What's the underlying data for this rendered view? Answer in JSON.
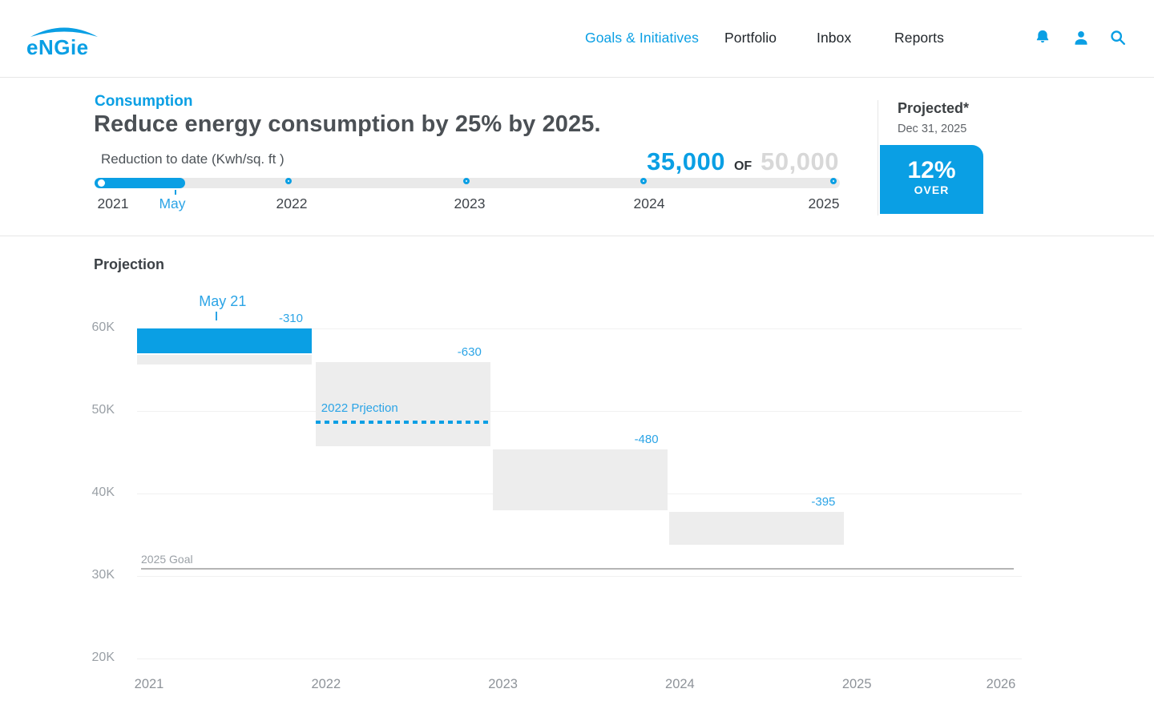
{
  "theme": {
    "accent_blue": "#0a9fe4",
    "light_blue_text": "#2ba4e6",
    "dark_text": "#4b5055",
    "muted_text": "#9aa0a6",
    "target_gray": "#d8d8d8"
  },
  "header": {
    "logo_text": "eNGie",
    "nav": [
      {
        "label": "Goals & Initiatives",
        "active": true
      },
      {
        "label": "Portfolio",
        "active": false
      },
      {
        "label": "Inbox",
        "active": false
      },
      {
        "label": "Reports",
        "active": false
      }
    ],
    "icons": [
      {
        "name": "notification-bell-icon"
      },
      {
        "name": "user-account-icon"
      },
      {
        "name": "search-icon"
      }
    ]
  },
  "goal": {
    "category": "Consumption",
    "title": "Reduce energy consumption by 25% by 2025.",
    "slider": {
      "label": "Reduction to date (Kwh/sq. ft )",
      "ticks": [
        "2021",
        "May",
        "2022",
        "2023",
        "2024",
        "2025"
      ],
      "current_position_label": "May"
    },
    "progress": {
      "current": "35,000",
      "of_label": "OF",
      "target": "50,000"
    },
    "projected": {
      "title": "Projected*",
      "date": "Dec 31, 2025",
      "value": "12%",
      "qualifier": "OVER"
    }
  },
  "chart_data": {
    "type": "waterfall",
    "title": "Projection",
    "unit": "Kwh/sq. ft (thousands)",
    "y_axis": {
      "ticks": [
        "60K",
        "50K",
        "40K",
        "30K",
        "20K"
      ],
      "tick_values_k": [
        60,
        50,
        40,
        30,
        20
      ],
      "min_k": 20,
      "max_k": 60,
      "grid": true
    },
    "x_axis": {
      "ticks": [
        "2021",
        "2022",
        "2023",
        "2024",
        "2025",
        "2026"
      ]
    },
    "steps": [
      {
        "period": "2021",
        "kind": "actual",
        "from_k": 60.0,
        "actual_to_k": 57.0,
        "residual_from_k": 56.8,
        "to_k": 55.65,
        "delta_label": "-310",
        "annotation": {
          "text": "May 21",
          "x_frac": 0.49
        }
      },
      {
        "period": "2022",
        "kind": "projected",
        "from_k": 55.9,
        "to_k": 45.7,
        "delta_label": "-630",
        "projection_line_k": 48.6,
        "projection_label": "2022 Prjection"
      },
      {
        "period": "2023",
        "kind": "projected",
        "from_k": 45.3,
        "to_k": 38.0,
        "delta_label": "-480"
      },
      {
        "period": "2024",
        "kind": "projected",
        "from_k": 37.8,
        "to_k": 33.8,
        "delta_label": "-395"
      }
    ],
    "goal_line": {
      "label": "2025 Goal",
      "value_k": 31.0
    },
    "colors": {
      "actual_bar": "#0a9fe4",
      "projected_bar": "#ededed",
      "goal_line": "#b5b5b5",
      "grid": "#f1f1f1",
      "label_blue": "#2ba4e6"
    },
    "legend": "none"
  }
}
